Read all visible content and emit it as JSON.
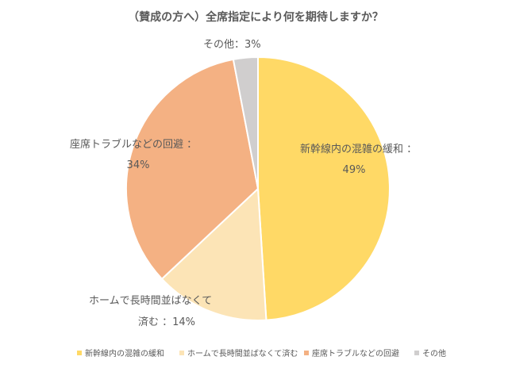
{
  "chart_data": {
    "type": "pie",
    "title": "（賛成の方へ）全席指定により何を期待しますか？",
    "categories": [
      "新幹線内の混雑の緩和",
      "ホームで長時間並ばなくて済む",
      "座席トラブルなどの回避",
      "その他"
    ],
    "values": [
      49,
      14,
      34,
      3
    ],
    "unit": "%",
    "data_labels": [
      {
        "line1": "新幹線内の混雑の緩和 ：",
        "line2": "49%"
      },
      {
        "line1": "ホームで長時間並ばなくて",
        "line2": "済む ：14%"
      },
      {
        "line1": "座席トラブルなどの回避 ：",
        "line2": "34%"
      },
      {
        "line1": "その他：3%",
        "line2": ""
      }
    ],
    "colors": [
      "#FFD966",
      "#FCE4B6",
      "#F4B183",
      "#D0CECE"
    ],
    "legend_position": "bottom"
  }
}
